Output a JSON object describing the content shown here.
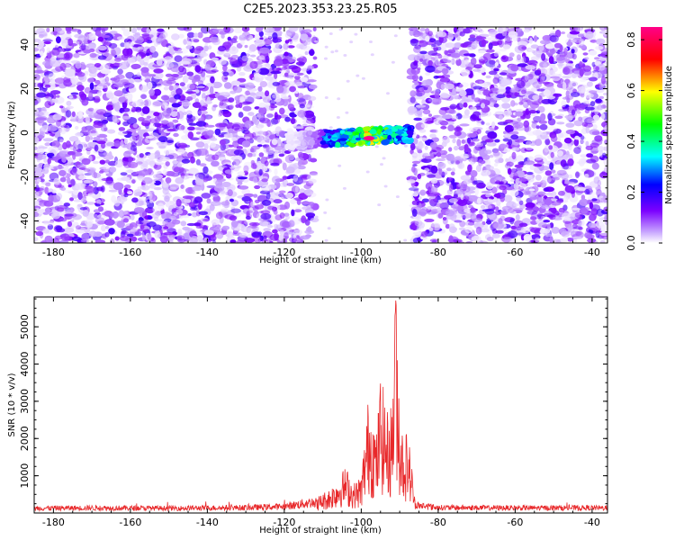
{
  "title": "C2E5.2023.353.23.25.R05",
  "chart_data": [
    {
      "type": "heatmap",
      "xlabel": "Height of straight line (km)",
      "ylabel": "Frequency (Hz)",
      "xlim": [
        -185,
        -36
      ],
      "ylim": [
        -50,
        48
      ],
      "xticks": [
        -180,
        -160,
        -140,
        -120,
        -100,
        -80,
        -60,
        -40
      ],
      "yticks": [
        -40,
        -20,
        0,
        20,
        40
      ],
      "x_tick_labels": [
        "-180",
        "-160",
        "-140",
        "-120",
        "-100",
        "-80",
        "-60",
        "-40"
      ],
      "y_tick_labels": [
        "-40",
        "-20",
        "0",
        "20",
        "40"
      ],
      "colorbar": {
        "label": "Normalized spectral amplitude",
        "range": [
          0,
          0.85
        ],
        "ticks": [
          0.0,
          0.2,
          0.4,
          0.6,
          0.8
        ],
        "tick_labels": [
          "0.0",
          "0.2",
          "0.4",
          "0.6",
          "0.8"
        ],
        "colors": [
          "#ffffff",
          "#7b00ff",
          "#0000ff",
          "#00ffff",
          "#00ff00",
          "#ffff00",
          "#ff0000",
          "#ff0088"
        ]
      },
      "features": {
        "noise_region_left_x": [
          -185,
          -112
        ],
        "noise_region_right_x": [
          -87,
          -36
        ],
        "signal_band": {
          "x": [
            -119,
            -87
          ],
          "frequency_center": -2,
          "peak_x": -98,
          "peak_amplitude": 0.85
        }
      }
    },
    {
      "type": "line",
      "xlabel": "Height of straight line (km)",
      "ylabel": "SNR (10 * v/v)",
      "xlim": [
        -185,
        -36
      ],
      "ylim": [
        0,
        5800
      ],
      "xticks": [
        -180,
        -160,
        -140,
        -120,
        -100,
        -80,
        -60,
        -40
      ],
      "yticks": [
        1000,
        2000,
        3000,
        4000,
        5000
      ],
      "x_tick_labels": [
        "-180",
        "-160",
        "-140",
        "-120",
        "-100",
        "-80",
        "-60",
        "-40"
      ],
      "y_tick_labels": [
        "1000",
        "2000",
        "3000",
        "4000",
        "5000"
      ],
      "series": [
        {
          "color": "#e8282a",
          "x": [
            -185,
            -170,
            -150,
            -130,
            -120,
            -112,
            -108,
            -104,
            -102,
            -100,
            -98,
            -96,
            -95,
            -93,
            -92,
            -91,
            -90,
            -89,
            -88,
            -87,
            -86,
            -80,
            -60,
            -36
          ],
          "y": [
            150,
            160,
            150,
            170,
            200,
            350,
            600,
            1100,
            700,
            900,
            2900,
            1900,
            3300,
            2300,
            2700,
            5800,
            2600,
            1800,
            2000,
            1300,
            250,
            170,
            160,
            160
          ]
        }
      ]
    }
  ]
}
